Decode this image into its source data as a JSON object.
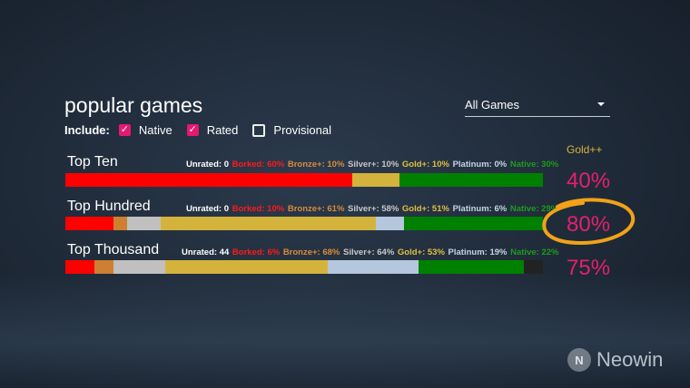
{
  "title": "popular games",
  "include": {
    "label": "Include:",
    "options": [
      {
        "label": "Native",
        "checked": true
      },
      {
        "label": "Rated",
        "checked": true
      },
      {
        "label": "Provisional",
        "checked": false
      }
    ]
  },
  "filter": {
    "selected": "All Games"
  },
  "gold_header": "Gold++",
  "colors": {
    "borked": "#ff0000",
    "bronze": "#cd7f32",
    "silver": "#c0c0c0",
    "gold": "#d4b33c",
    "platinum": "#b4c7dc",
    "native": "#008000",
    "unrated": "#222222",
    "accent": "#e5196f"
  },
  "rows": [
    {
      "name": "Top Ten",
      "stats": {
        "unrated": "Unrated: 0",
        "borked": "Borked: 60%",
        "bronze": "Bronze+: 10%",
        "silver": "Silver+: 10%",
        "gold": "Gold+: 10%",
        "platinum": "Platinum: 0%",
        "native": "Native: 30%"
      },
      "segments": [
        {
          "kind": "borked",
          "pct": 60
        },
        {
          "kind": "gold",
          "pct": 10
        },
        {
          "kind": "native",
          "pct": 30
        }
      ],
      "gold_pct": "40%"
    },
    {
      "name": "Top Hundred",
      "stats": {
        "unrated": "Unrated: 0",
        "borked": "Borked: 10%",
        "bronze": "Bronze+: 61%",
        "silver": "Silver+: 58%",
        "gold": "Gold+: 51%",
        "platinum": "Platinum: 6%",
        "native": "Native: 29%"
      },
      "segments": [
        {
          "kind": "borked",
          "pct": 10
        },
        {
          "kind": "bronze",
          "pct": 3
        },
        {
          "kind": "silver",
          "pct": 7
        },
        {
          "kind": "gold",
          "pct": 45
        },
        {
          "kind": "platinum",
          "pct": 6
        },
        {
          "kind": "native",
          "pct": 29
        }
      ],
      "gold_pct": "80%"
    },
    {
      "name": "Top Thousand",
      "stats": {
        "unrated": "Unrated: 44",
        "borked": "Borked: 6%",
        "bronze": "Bronze+: 68%",
        "silver": "Silver+: 64%",
        "gold": "Gold+: 53%",
        "platinum": "Platinum: 19%",
        "native": "Native: 22%"
      },
      "segments": [
        {
          "kind": "borked",
          "pct": 6
        },
        {
          "kind": "bronze",
          "pct": 4
        },
        {
          "kind": "silver",
          "pct": 11
        },
        {
          "kind": "gold",
          "pct": 34
        },
        {
          "kind": "platinum",
          "pct": 19
        },
        {
          "kind": "native",
          "pct": 22
        },
        {
          "kind": "unrated",
          "pct": 4
        }
      ],
      "gold_pct": "75%"
    }
  ],
  "watermark": "Neowin"
}
